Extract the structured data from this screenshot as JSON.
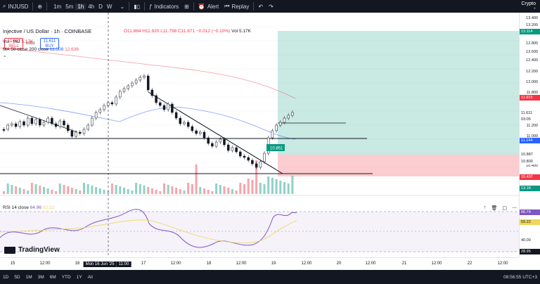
{
  "topbar": {
    "symbol": "INJUSD",
    "add_icon": "plus-circle-icon",
    "timeframes": [
      "1m",
      "5m",
      "1h",
      "4h",
      "D",
      "W"
    ],
    "active_timeframe": "1h",
    "indicators_label": "Indicators",
    "alert_label": "Alert",
    "replay_label": "Replay",
    "brand_name": "Crypto"
  },
  "legend": {
    "title": "Injective / US Dollar · 1h · COINBASE",
    "ohlc": {
      "o": "O11.884",
      "h": "H11.920",
      "l": "L11.798",
      "c": "C11.871",
      "chg": "−0.012 (−0.10%)",
      "vol": "Vol 5.17K"
    },
    "sell_price": "11.610",
    "sell_label": "SELL",
    "spread": "0.001",
    "buy_price": "11.611",
    "buy_label": "BUY",
    "vol_line": "Vol · INJ",
    "vol_value": "5.17K",
    "ma_line": "MA 50 close 200 close",
    "ma50": "11.508",
    "ma200": "12.636",
    "rsi_line": "RSI 14 close",
    "rsi_value": "64.96",
    "rsi_ma": "52.22"
  },
  "price_axis": {
    "ticks": [
      "13.400",
      "13.200",
      "13.000",
      "12.800",
      "12.600",
      "12.400",
      "12.200",
      "12.000",
      "11.800",
      "11.400",
      "11.200",
      "11.000",
      "10.600",
      "10.400",
      "10.200"
    ],
    "tags": [
      {
        "label": "13.114",
        "color": "#089981"
      },
      {
        "label": "11.915",
        "color": "#f23645"
      },
      {
        "label": "11.611",
        "color": "#ffffff"
      },
      {
        "label": "03:05",
        "color": "#ffffff"
      },
      {
        "label": "11.144",
        "color": "#2962ff"
      },
      {
        "label": "10.887",
        "color": "#ffffff"
      },
      {
        "label": "10.800",
        "color": "#ffffff"
      },
      {
        "label": "10.497",
        "color": "#f23645"
      },
      {
        "label": "13.1K",
        "color": "#089981"
      }
    ],
    "rsi_ticks": [
      "66.74",
      "59.22",
      "40.00",
      "28.95"
    ]
  },
  "time_axis": {
    "labels": [
      "15",
      "12:00",
      "16",
      "Mon 16 Jun '25",
      "11:00",
      "17",
      "12:00",
      "18",
      "12:00",
      "19",
      "12:00",
      "20",
      "12:00",
      "21",
      "12:00",
      "22",
      "12:00"
    ]
  },
  "chart_labels": {
    "box_label": "10.851",
    "logo_text": "TradingView"
  },
  "bottombar": {
    "ranges": [
      "1D",
      "5D",
      "1M",
      "3M",
      "6M",
      "YTD",
      "1Y",
      "All"
    ],
    "clock": "08:56:55 UTC+3"
  },
  "colors": {
    "up": "#089981",
    "down": "#f23645",
    "ma50": "#2962ff",
    "ma200": "#f7525f",
    "rsi": "#7e57c2"
  }
}
